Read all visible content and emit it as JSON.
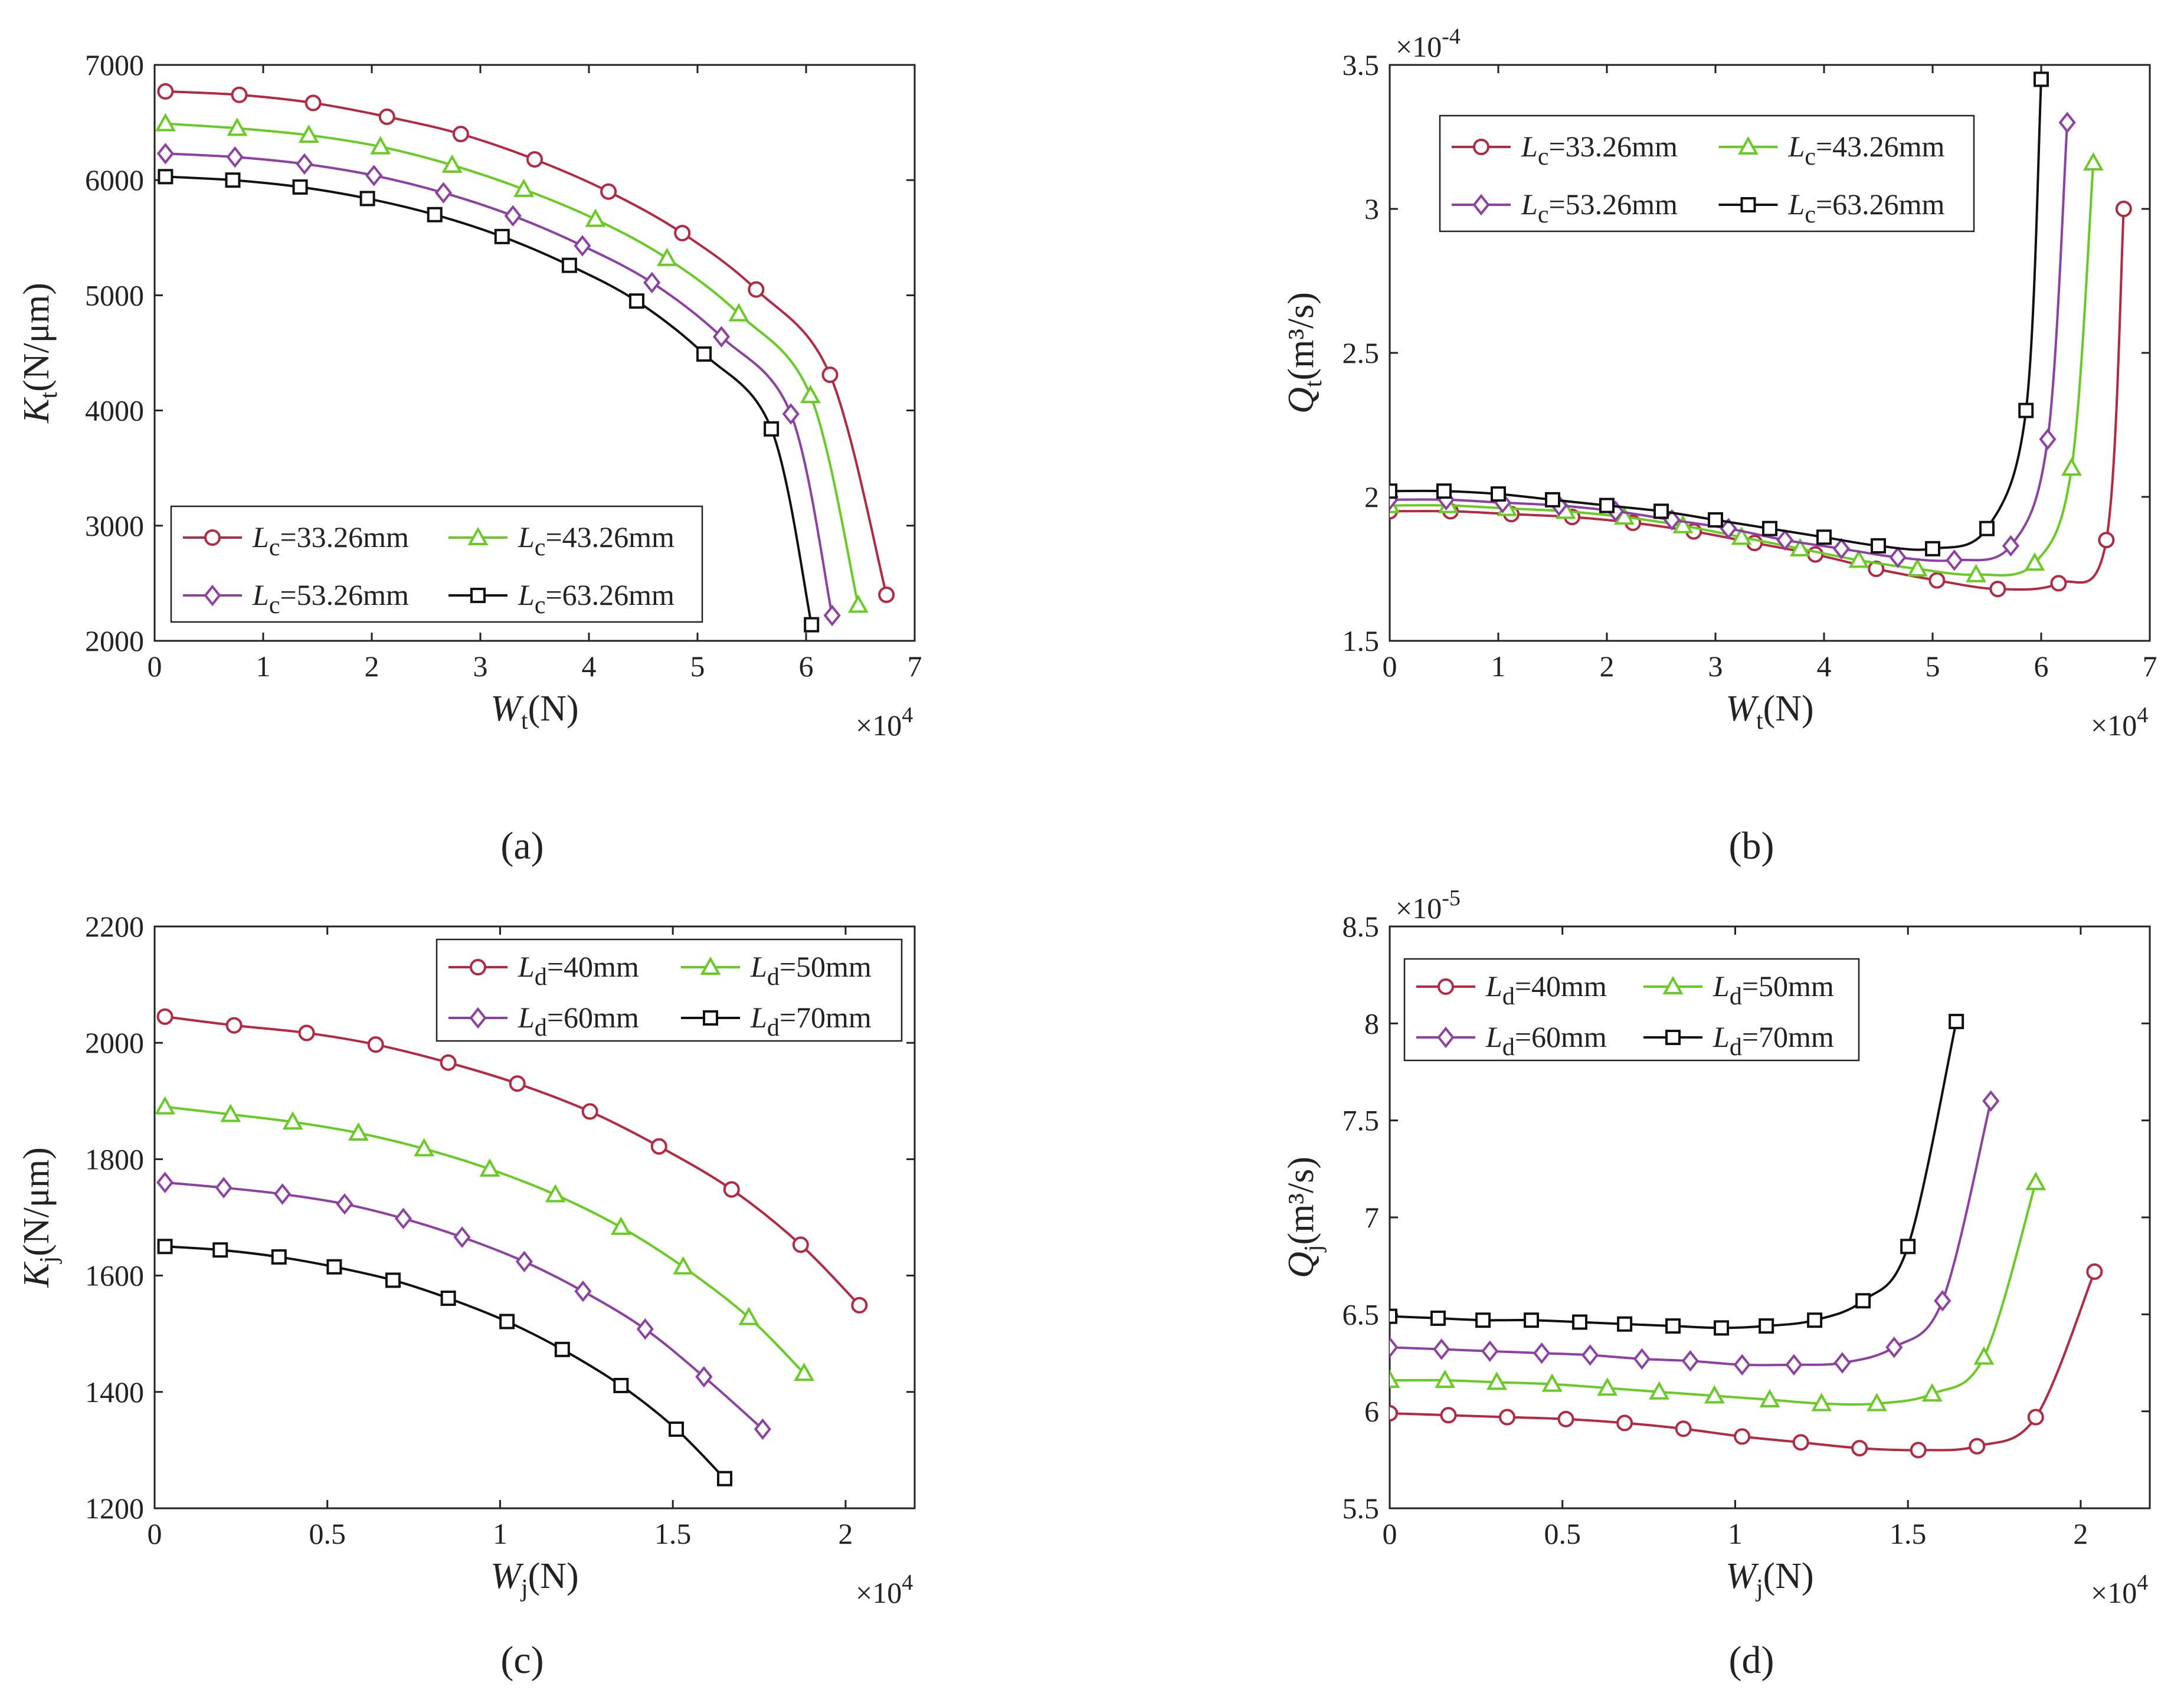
{
  "figure": {
    "panel_labels": [
      "(a)",
      "(b)",
      "(c)",
      "(d)"
    ]
  },
  "chart_data": [
    {
      "id": "a",
      "type": "line",
      "ylabel": {
        "sym": "K",
        "sub": "t",
        "unit": "(N/μm)"
      },
      "xlabel": {
        "sym": "W",
        "sub": "t",
        "unit": "(N)"
      },
      "x_multiplier": {
        "base": "×10",
        "exp": "4"
      },
      "y_multiplier": null,
      "xlim": [
        0,
        7
      ],
      "ylim": [
        2000,
        7000
      ],
      "xticks": [
        0,
        1,
        2,
        3,
        4,
        5,
        6,
        7
      ],
      "xtick_labels": [
        "0",
        "1",
        "2",
        "3",
        "4",
        "5",
        "6",
        "7"
      ],
      "yticks": [
        2000,
        3000,
        4000,
        5000,
        6000,
        7000
      ],
      "ytick_labels": [
        "2000",
        "3000",
        "4000",
        "5000",
        "6000",
        "7000"
      ],
      "legend_position": "bottom-left",
      "series": [
        {
          "name": "=33.26mm",
          "legend_sym": "L",
          "legend_sub": "c",
          "color": "#b5283f",
          "marker": "circle",
          "x": [
            0.1,
            0.78,
            1.46,
            2.14,
            2.82,
            3.5,
            4.18,
            4.86,
            5.54,
            6.22,
            6.74
          ],
          "y": [
            6770,
            6740,
            6670,
            6550,
            6400,
            6180,
            5900,
            5540,
            5050,
            4310,
            2400
          ]
        },
        {
          "name": "=43.26mm",
          "legend_sym": "L",
          "legend_sub": "c",
          "color": "#66cc22",
          "marker": "triangle",
          "x": [
            0.1,
            0.76,
            1.42,
            2.08,
            2.74,
            3.4,
            4.06,
            4.72,
            5.38,
            6.04,
            6.48
          ],
          "y": [
            6490,
            6450,
            6390,
            6290,
            6130,
            5920,
            5660,
            5320,
            4840,
            4130,
            2310
          ]
        },
        {
          "name": "=53.26mm",
          "legend_sym": "L",
          "legend_sub": "c",
          "color": "#8e3fa3",
          "marker": "diamond",
          "x": [
            0.1,
            0.74,
            1.38,
            2.02,
            2.66,
            3.3,
            3.94,
            4.58,
            5.22,
            5.86,
            6.24
          ],
          "y": [
            6230,
            6200,
            6140,
            6040,
            5890,
            5690,
            5430,
            5110,
            4640,
            3970,
            2220
          ]
        },
        {
          "name": "=63.26mm",
          "legend_sym": "L",
          "legend_sub": "c",
          "color": "#111111",
          "marker": "square",
          "x": [
            0.1,
            0.72,
            1.34,
            1.96,
            2.58,
            3.2,
            3.82,
            4.44,
            5.06,
            5.68,
            6.05
          ],
          "y": [
            6030,
            6000,
            5940,
            5840,
            5700,
            5510,
            5260,
            4950,
            4490,
            3840,
            2140
          ]
        }
      ]
    },
    {
      "id": "b",
      "type": "line",
      "ylabel": {
        "sym": "Q",
        "sub": "t",
        "unit": "(m³/s)"
      },
      "xlabel": {
        "sym": "W",
        "sub": "t",
        "unit": "(N)"
      },
      "x_multiplier": {
        "base": "×10",
        "exp": "4"
      },
      "y_multiplier": {
        "base": "×10",
        "exp": "-4"
      },
      "xlim": [
        0,
        7
      ],
      "ylim": [
        1.5,
        3.5
      ],
      "xticks": [
        0,
        1,
        2,
        3,
        4,
        5,
        6,
        7
      ],
      "xtick_labels": [
        "0",
        "1",
        "2",
        "3",
        "4",
        "5",
        "6",
        "7"
      ],
      "yticks": [
        1.5,
        2,
        2.5,
        3,
        3.5
      ],
      "ytick_labels": [
        "1.5",
        "2",
        "2.5",
        "3",
        "3.5"
      ],
      "legend_position": "top-left",
      "series": [
        {
          "name": "=33.26mm",
          "legend_sym": "L",
          "legend_sub": "c",
          "color": "#b5283f",
          "marker": "circle",
          "x": [
            0,
            0.56,
            1.12,
            1.68,
            2.24,
            2.8,
            3.36,
            3.92,
            4.48,
            5.04,
            5.6,
            6.16,
            6.6,
            6.76
          ],
          "y": [
            1.95,
            1.95,
            1.94,
            1.93,
            1.91,
            1.88,
            1.84,
            1.8,
            1.75,
            1.71,
            1.68,
            1.7,
            1.85,
            3.0
          ]
        },
        {
          "name": "=43.26mm",
          "legend_sym": "L",
          "legend_sub": "c",
          "color": "#66cc22",
          "marker": "triangle",
          "x": [
            0,
            0.54,
            1.08,
            1.62,
            2.16,
            2.7,
            3.24,
            3.78,
            4.32,
            4.86,
            5.4,
            5.94,
            6.28,
            6.48
          ],
          "y": [
            1.97,
            1.97,
            1.96,
            1.95,
            1.93,
            1.9,
            1.86,
            1.82,
            1.78,
            1.75,
            1.73,
            1.77,
            2.1,
            3.16
          ]
        },
        {
          "name": "=53.26mm",
          "legend_sym": "L",
          "legend_sub": "c",
          "color": "#8e3fa3",
          "marker": "diamond",
          "x": [
            0,
            0.52,
            1.04,
            1.56,
            2.08,
            2.6,
            3.12,
            3.64,
            4.16,
            4.68,
            5.2,
            5.72,
            6.06,
            6.24
          ],
          "y": [
            1.99,
            1.99,
            1.98,
            1.97,
            1.95,
            1.92,
            1.89,
            1.85,
            1.82,
            1.79,
            1.78,
            1.83,
            2.2,
            3.3
          ]
        },
        {
          "name": "=63.26mm",
          "legend_sym": "L",
          "legend_sub": "c",
          "color": "#111111",
          "marker": "square",
          "x": [
            0,
            0.5,
            1.0,
            1.5,
            2.0,
            2.5,
            3.0,
            3.5,
            4.0,
            4.5,
            5.0,
            5.5,
            5.86,
            6.0
          ],
          "y": [
            2.02,
            2.02,
            2.01,
            1.99,
            1.97,
            1.95,
            1.92,
            1.89,
            1.86,
            1.83,
            1.82,
            1.89,
            2.3,
            3.45
          ]
        }
      ]
    },
    {
      "id": "c",
      "type": "line",
      "ylabel": {
        "sym": "K",
        "sub": "j",
        "unit": "(N/μm)"
      },
      "xlabel": {
        "sym": "W",
        "sub": "j",
        "unit": "(N)"
      },
      "x_multiplier": {
        "base": "×10",
        "exp": "4"
      },
      "y_multiplier": null,
      "xlim": [
        0,
        2.2
      ],
      "ylim": [
        1200,
        2200
      ],
      "xticks": [
        0,
        0.5,
        1,
        1.5,
        2
      ],
      "xtick_labels": [
        "0",
        "0.5",
        "1",
        "1.5",
        "2"
      ],
      "yticks": [
        1200,
        1400,
        1600,
        1800,
        2000,
        2200
      ],
      "ytick_labels": [
        "1200",
        "1400",
        "1600",
        "1800",
        "2000",
        "2200"
      ],
      "legend_position": "top-right",
      "series": [
        {
          "name": "=40mm",
          "legend_sym": "L",
          "legend_sub": "d",
          "color": "#b5283f",
          "marker": "circle",
          "x": [
            0.03,
            0.23,
            0.44,
            0.64,
            0.85,
            1.05,
            1.26,
            1.46,
            1.67,
            1.87,
            2.04
          ],
          "y": [
            2045,
            2030,
            2017,
            1997,
            1966,
            1930,
            1882,
            1822,
            1748,
            1653,
            1549
          ]
        },
        {
          "name": "=50mm",
          "legend_sym": "L",
          "legend_sub": "d",
          "color": "#66cc22",
          "marker": "triangle",
          "x": [
            0.03,
            0.22,
            0.4,
            0.59,
            0.78,
            0.97,
            1.16,
            1.35,
            1.53,
            1.72,
            1.88
          ],
          "y": [
            1890,
            1877,
            1864,
            1845,
            1818,
            1783,
            1739,
            1683,
            1615,
            1528,
            1432
          ]
        },
        {
          "name": "=60mm",
          "legend_sym": "L",
          "legend_sub": "d",
          "color": "#8e3fa3",
          "marker": "diamond",
          "x": [
            0.03,
            0.2,
            0.37,
            0.55,
            0.72,
            0.89,
            1.07,
            1.24,
            1.42,
            1.59,
            1.76
          ],
          "y": [
            1760,
            1751,
            1740,
            1723,
            1698,
            1666,
            1624,
            1573,
            1508,
            1426,
            1336
          ]
        },
        {
          "name": "=70mm",
          "legend_sym": "L",
          "legend_sub": "d",
          "color": "#111111",
          "marker": "square",
          "x": [
            0.03,
            0.19,
            0.36,
            0.52,
            0.69,
            0.85,
            1.02,
            1.18,
            1.35,
            1.51,
            1.65
          ],
          "y": [
            1650,
            1644,
            1632,
            1615,
            1592,
            1561,
            1521,
            1473,
            1411,
            1336,
            1251
          ]
        }
      ]
    },
    {
      "id": "d",
      "type": "line",
      "ylabel": {
        "sym": "Q",
        "sub": "j",
        "unit": "(m³/s)"
      },
      "xlabel": {
        "sym": "W",
        "sub": "j",
        "unit": "(N)"
      },
      "x_multiplier": {
        "base": "×10",
        "exp": "4"
      },
      "y_multiplier": {
        "base": "×10",
        "exp": "-5"
      },
      "xlim": [
        0,
        2.2
      ],
      "ylim": [
        5.5,
        8.5
      ],
      "xticks": [
        0,
        0.5,
        1,
        1.5,
        2
      ],
      "xtick_labels": [
        "0",
        "0.5",
        "1",
        "1.5",
        "2"
      ],
      "yticks": [
        5.5,
        6,
        6.5,
        7,
        7.5,
        8,
        8.5
      ],
      "ytick_labels": [
        "5.5",
        "6",
        "6.5",
        "7",
        "7.5",
        "8",
        "8.5"
      ],
      "legend_position": "top-left",
      "series": [
        {
          "name": "=40mm",
          "legend_sym": "L",
          "legend_sub": "d",
          "color": "#b5283f",
          "marker": "circle",
          "x": [
            0,
            0.17,
            0.34,
            0.51,
            0.68,
            0.85,
            1.02,
            1.19,
            1.36,
            1.53,
            1.7,
            1.87,
            2.04
          ],
          "y": [
            5.99,
            5.98,
            5.97,
            5.96,
            5.94,
            5.91,
            5.87,
            5.84,
            5.81,
            5.8,
            5.82,
            5.97,
            6.72
          ]
        },
        {
          "name": "=50mm",
          "legend_sym": "L",
          "legend_sub": "d",
          "color": "#66cc22",
          "marker": "triangle",
          "x": [
            0,
            0.16,
            0.31,
            0.47,
            0.63,
            0.78,
            0.94,
            1.1,
            1.25,
            1.41,
            1.57,
            1.72,
            1.87
          ],
          "y": [
            6.16,
            6.16,
            6.15,
            6.14,
            6.12,
            6.1,
            6.08,
            6.06,
            6.04,
            6.04,
            6.09,
            6.28,
            7.18
          ]
        },
        {
          "name": "=60mm",
          "legend_sym": "L",
          "legend_sub": "d",
          "color": "#8e3fa3",
          "marker": "diamond",
          "x": [
            0,
            0.15,
            0.29,
            0.44,
            0.58,
            0.73,
            0.87,
            1.02,
            1.17,
            1.31,
            1.46,
            1.6,
            1.74
          ],
          "y": [
            6.33,
            6.32,
            6.31,
            6.3,
            6.29,
            6.27,
            6.26,
            6.24,
            6.24,
            6.25,
            6.33,
            6.57,
            7.6
          ]
        },
        {
          "name": "=70mm",
          "legend_sym": "L",
          "legend_sub": "d",
          "color": "#111111",
          "marker": "square",
          "x": [
            0,
            0.14,
            0.27,
            0.41,
            0.55,
            0.68,
            0.82,
            0.96,
            1.09,
            1.23,
            1.37,
            1.5,
            1.64
          ],
          "y": [
            6.49,
            6.48,
            6.47,
            6.47,
            6.46,
            6.45,
            6.44,
            6.43,
            6.44,
            6.47,
            6.57,
            6.85,
            8.01
          ]
        }
      ]
    }
  ]
}
